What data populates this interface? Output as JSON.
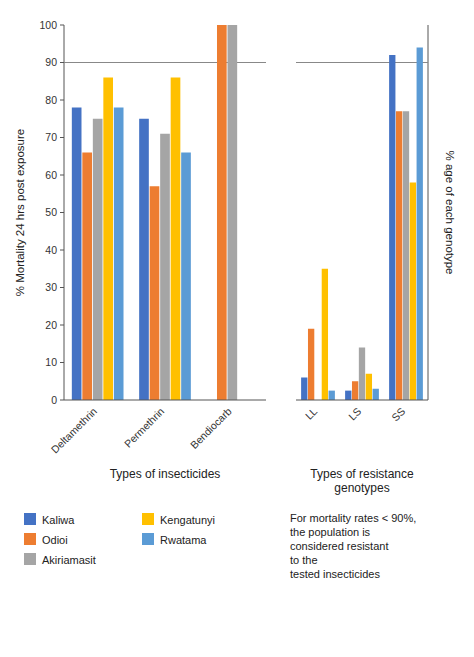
{
  "chart_data": [
    {
      "type": "bar",
      "categories": [
        "Deltamethrin",
        "Permethrin",
        "Bendiocarb"
      ],
      "x_label": "Types of insecticides",
      "y_label": "% Mortality 24 hrs post exposure",
      "ylim": [
        0,
        100
      ],
      "yticks": [
        0,
        10,
        20,
        30,
        40,
        50,
        60,
        70,
        80,
        90,
        100
      ],
      "hline": 90,
      "annotation": "For mortality rates < 90%,\nthe population is\nconsidered resistant\nto the\ntested insecticides",
      "legend": "bottom",
      "series": [
        {
          "name": "Kaliwa",
          "color": "#4472C4",
          "values": [
            78,
            75,
            0
          ]
        },
        {
          "name": "Odioi",
          "color": "#ED7D31",
          "values": [
            66,
            57,
            100
          ]
        },
        {
          "name": "Akiriamasit",
          "color": "#A5A5A5",
          "values": [
            75,
            71,
            100
          ]
        },
        {
          "name": "Kengatunyi",
          "color": "#FFC000",
          "values": [
            86,
            86,
            0
          ]
        },
        {
          "name": "Rwatama",
          "color": "#5B9BD5",
          "values": [
            78,
            66,
            0
          ]
        }
      ]
    },
    {
      "type": "bar",
      "categories": [
        "LL",
        "LS",
        "SS"
      ],
      "x_label": "Types of resistance\ngenotypes",
      "y_label": "% age of each genotype",
      "ylim": [
        0,
        100
      ],
      "tick_labels": "x",
      "hline": 90,
      "series": [
        {
          "color": "#4472C4",
          "values": [
            6,
            2.5,
            92
          ]
        },
        {
          "color": "#ED7D31",
          "values": [
            19,
            5,
            77
          ]
        },
        {
          "color": "#A5A5A5",
          "values": [
            0,
            14,
            77
          ]
        },
        {
          "color": "#FFC000",
          "values": [
            35,
            7,
            58
          ]
        },
        {
          "color": "#5B9BD5",
          "values": [
            2.5,
            3,
            94
          ]
        }
      ]
    }
  ]
}
